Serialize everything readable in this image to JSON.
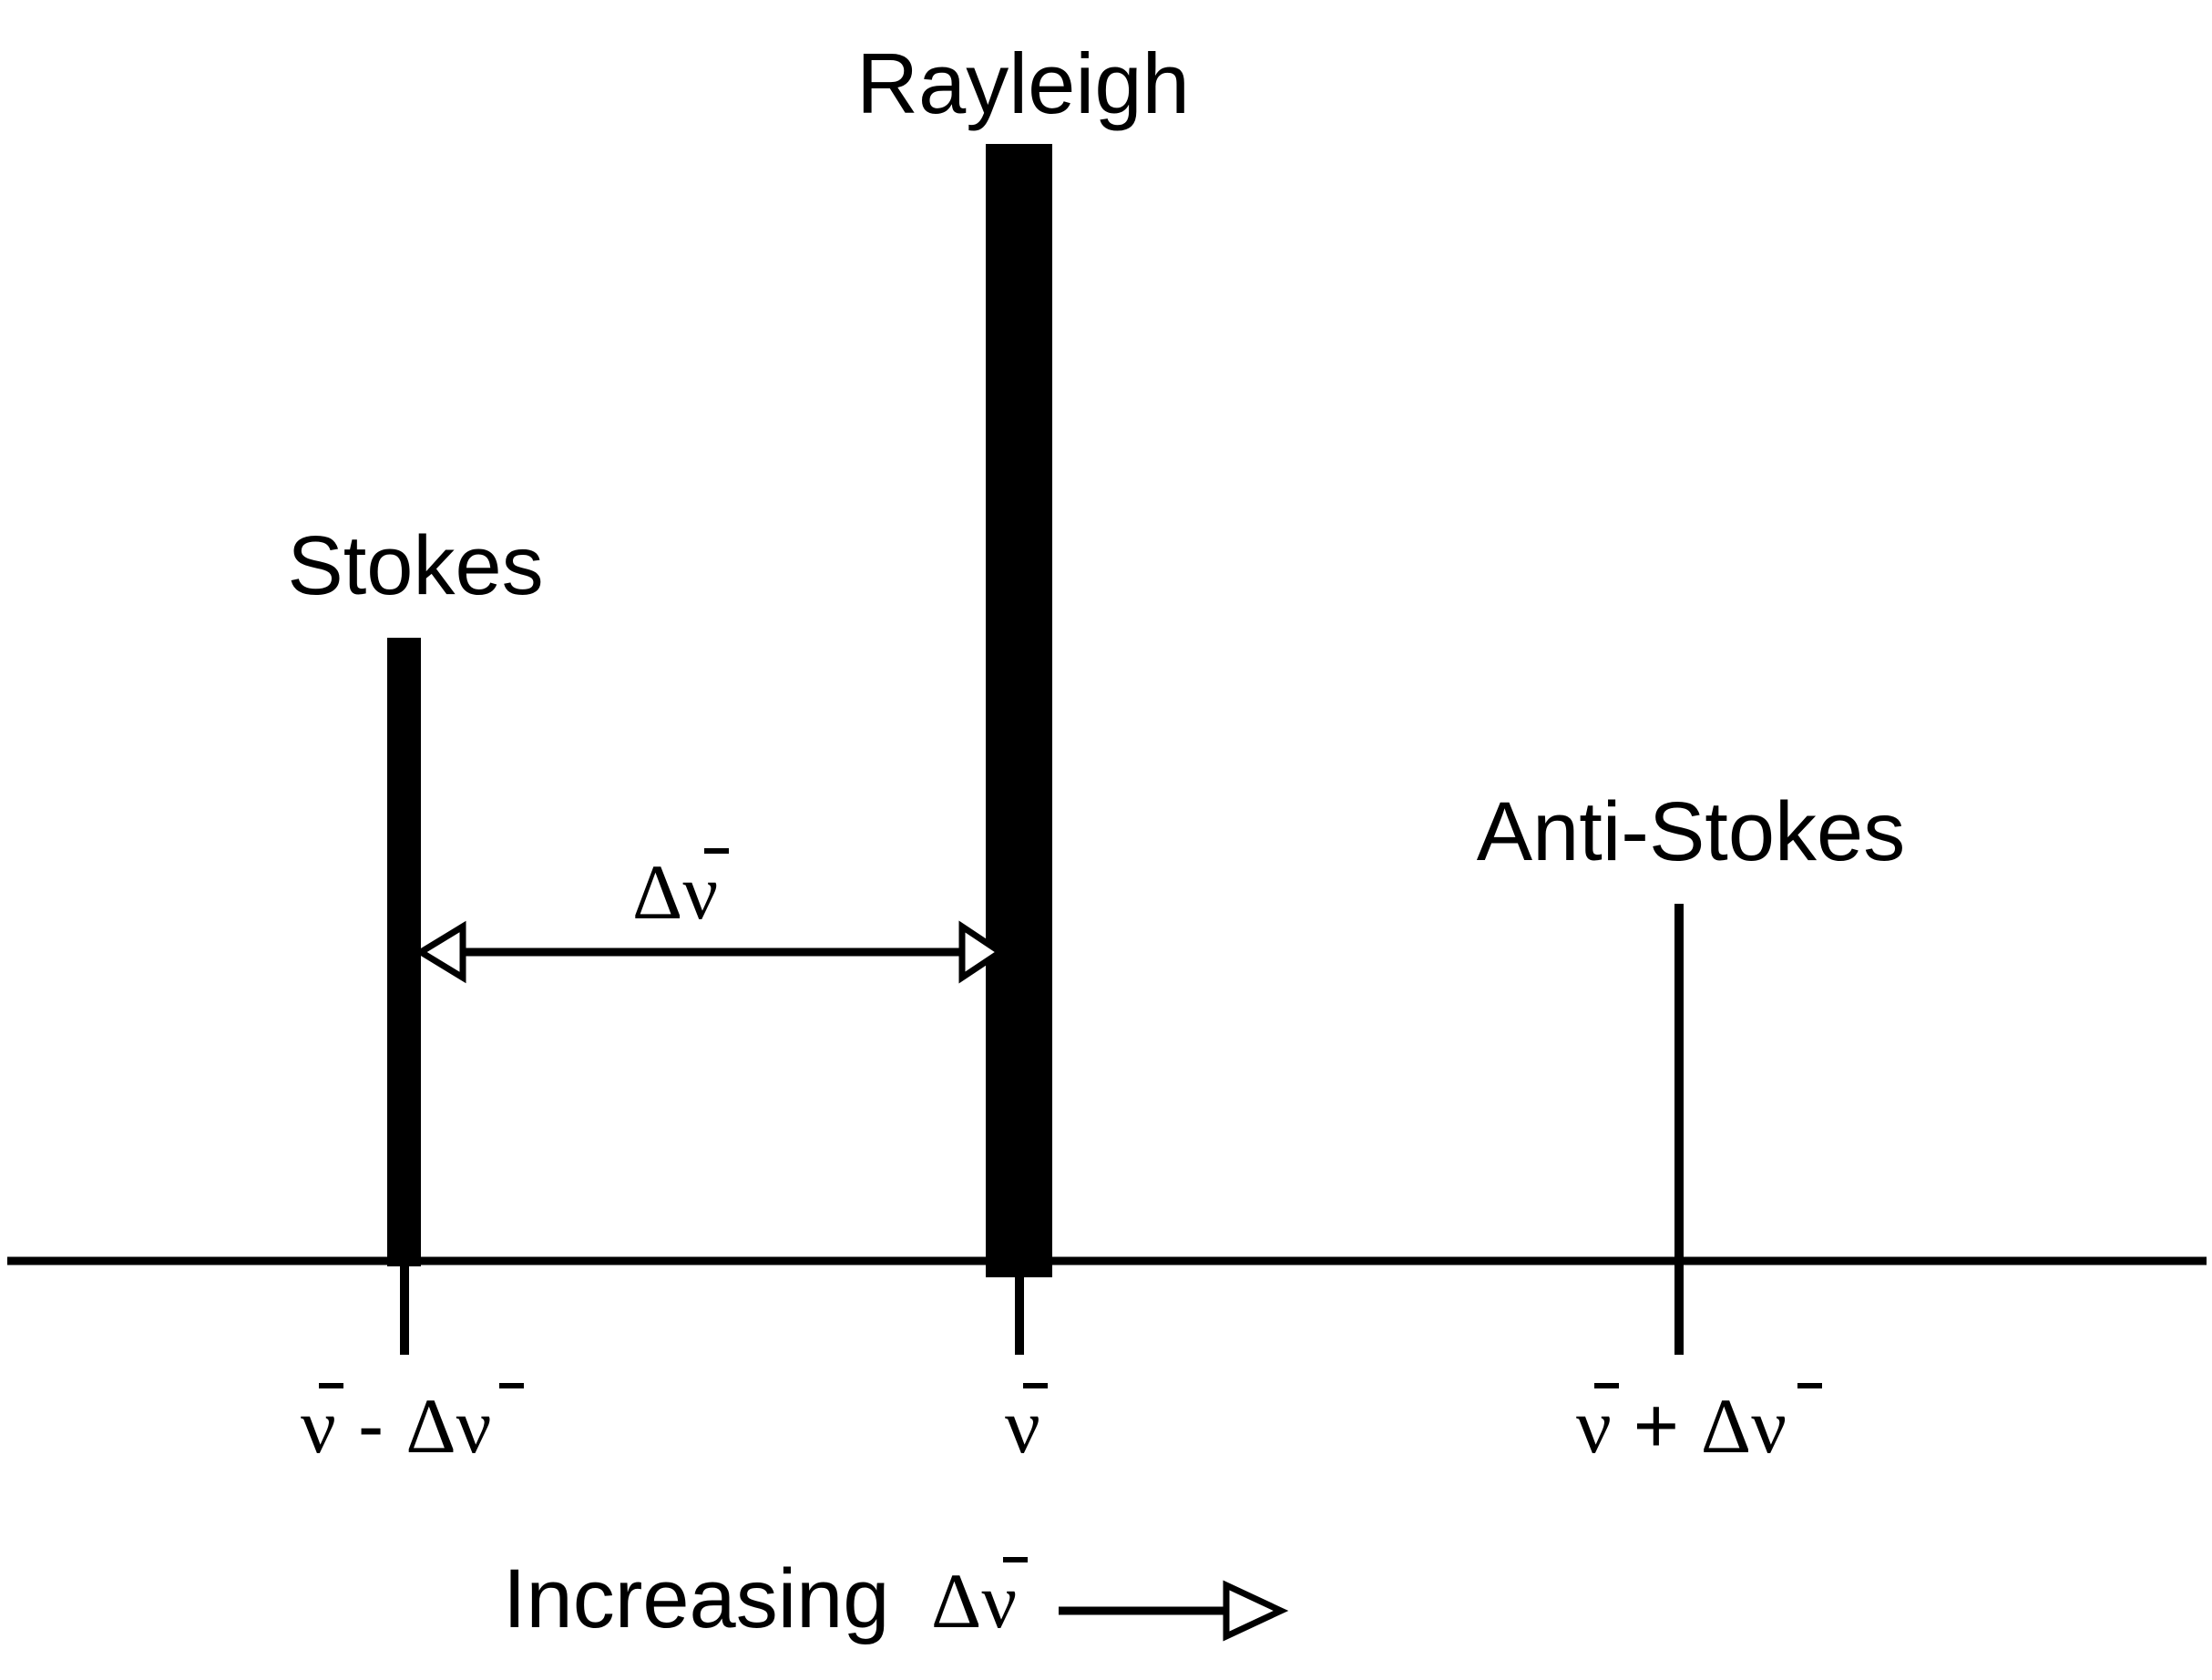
{
  "lines": {
    "stokes": {
      "label": "Stokes",
      "relative_intensity": 0.56
    },
    "rayleigh": {
      "label": "Rayleigh",
      "relative_intensity": 1.0
    },
    "anti_stokes": {
      "label": "Anti-Stokes",
      "relative_intensity": 0.32
    }
  },
  "shift_label": {
    "delta": "Δ",
    "nu": "ν"
  },
  "tick_labels": {
    "stokes": {
      "nu": "ν",
      "op": " - ",
      "delta": "Δ",
      "nu2": "ν"
    },
    "rayleigh": {
      "nu": "ν"
    },
    "anti_stokes": {
      "nu": "ν",
      "op": " + ",
      "delta": "Δ",
      "nu2": "ν"
    }
  },
  "direction_label": {
    "text": "Increasing ",
    "delta": "Δ",
    "nu": "ν"
  },
  "colors": {
    "ink": "#000000",
    "background": "#ffffff"
  }
}
